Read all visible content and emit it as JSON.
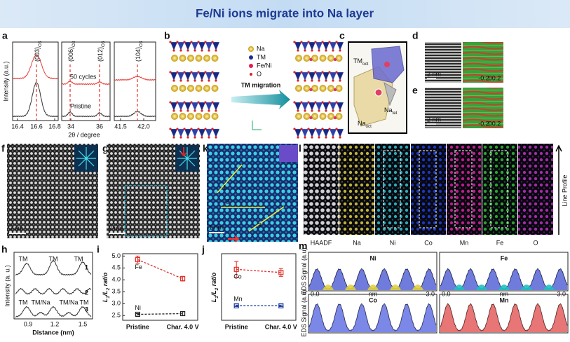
{
  "header": {
    "title": "Fe/Ni ions migrate into Na layer"
  },
  "panel_a": {
    "label": "a",
    "ylabel": "Intensity (a.u.)",
    "xlabel": "2θ / degree",
    "peaks": [
      [
        "(003)",
        "O3"
      ],
      [
        "(006)",
        "O3"
      ],
      [
        "(012)",
        "O3"
      ],
      [
        "(104)",
        "O3"
      ]
    ],
    "cycled": "50 cycles",
    "pristine": "Pristine",
    "xticks": [
      [
        "16.4",
        "16.6",
        "16.8"
      ],
      [
        "34",
        "36"
      ],
      [
        "41.5",
        "42.0"
      ]
    ]
  },
  "panel_b": {
    "label": "b",
    "legend": [
      "Na",
      "TM",
      "Fe/Ni",
      "O"
    ],
    "arrow": "TM migration"
  },
  "panel_c": {
    "label": "c",
    "tm": [
      "TM",
      "oct"
    ],
    "na_tet": [
      "Na",
      "tet"
    ],
    "na_oct": [
      "Na",
      "oct"
    ]
  },
  "panel_d": {
    "label": "d",
    "scale": "2 nm",
    "colorbar": [
      "-0.2",
      "0",
      "0.2"
    ]
  },
  "panel_e": {
    "label": "e",
    "scale": "2 nm",
    "colorbar": [
      "-0.2",
      "0",
      "0.2"
    ]
  },
  "panel_f": {
    "label": "f",
    "scale": "2 nm"
  },
  "panel_g": {
    "label": "g",
    "scale": "2 nm"
  },
  "panel_k": {
    "label": "k",
    "scale": "1 nm",
    "lines": [
      "1",
      "2",
      "3"
    ]
  },
  "panel_l": {
    "label": "l",
    "maps": [
      "HAADF",
      "Na",
      "Ni",
      "Co",
      "Mn",
      "Fe",
      "O"
    ],
    "arrow": "Line Profile"
  },
  "panel_h": {
    "label": "h",
    "ylabel": "Intensity (a. u.)",
    "xlabel": "Distance (nm)",
    "xticks": [
      "0.9",
      "1.2",
      "1.5"
    ],
    "profiles": [
      {
        "id": "1",
        "peaks": [
          "TM",
          "TM",
          "TM"
        ]
      },
      {
        "id": "2"
      },
      {
        "id": "3",
        "peaks": [
          "TM",
          "TM/Na",
          "TM/Na",
          "TM"
        ]
      }
    ]
  },
  "chart_data": [
    {
      "type": "errorline",
      "panel_label": "i",
      "ylabel": [
        "L",
        "1",
        "/L",
        "2",
        " ratio"
      ],
      "categories": [
        "Pristine",
        "Char. 4.0 V"
      ],
      "ylim": [
        2.3,
        5.1
      ],
      "yticks": [
        2.5,
        {
          "value": 3,
          "label": "3.0"
        },
        3.5,
        {
          "value": 4,
          "label": "4.0"
        },
        4.5,
        {
          "value": 5,
          "label": "5.0"
        }
      ],
      "series": [
        {
          "name": "Fe",
          "color": "#e0302a",
          "values": [
            4.85,
            4.05
          ],
          "errors": [
            0.15,
            0.1
          ]
        },
        {
          "name": "Ni",
          "color": "#222222",
          "values": [
            2.55,
            2.58
          ],
          "errors": [
            0.03,
            0.08
          ]
        }
      ]
    },
    {
      "type": "errorline",
      "panel_label": "j",
      "ylabel": [
        "L",
        "1",
        "/L",
        "2",
        " ratio"
      ],
      "categories": [
        "Pristine",
        "Char. 4.0 V"
      ],
      "ylim": [
        1.5,
        3.2
      ],
      "series": [
        {
          "name": "Co",
          "color": "#e0302a",
          "values": [
            2.8,
            2.72
          ],
          "errors": [
            0.2,
            0.1
          ]
        },
        {
          "name": "Mn",
          "color": "#1f3ea0",
          "values": [
            1.87,
            1.87
          ],
          "errors": [
            0.02,
            0.02
          ]
        }
      ]
    }
  ],
  "panel_m": {
    "label": "m",
    "ylabel": "EDS Signal (a.u)",
    "plots": [
      "Ni",
      "Fe",
      "Co",
      "Mn"
    ],
    "xmin": "0.0",
    "xunit": "nm",
    "xmax": "3.0"
  }
}
